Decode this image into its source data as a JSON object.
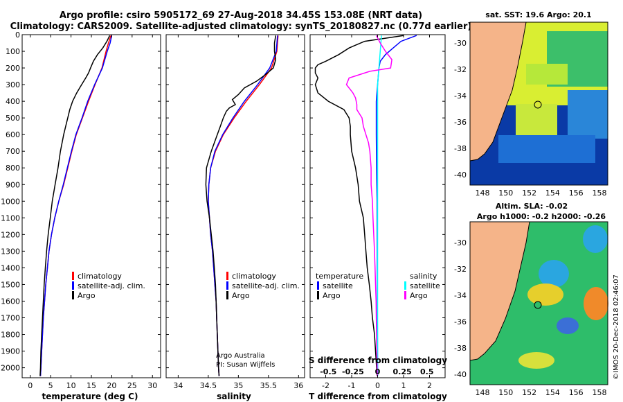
{
  "header": {
    "line1": "Argo profile: csiro 5905172_69 27-Aug-2018 34.45S 153.08E (NRT data)",
    "line2": "Climatology: CARS2009. Satellite-adjusted climatology: synTS_20180827.nc (0.77d earlier)"
  },
  "depth_axis": {
    "ticks": [
      0,
      100,
      200,
      300,
      400,
      500,
      600,
      700,
      800,
      900,
      1000,
      1100,
      1200,
      1300,
      1400,
      1500,
      1600,
      1700,
      1800,
      1900,
      2000
    ],
    "range": [
      0,
      2060
    ]
  },
  "colors": {
    "climatology": "#ff0000",
    "satellite": "#0000ff",
    "argo": "#000000",
    "sat_s": "#00ffff",
    "argo_s": "#ff00ff",
    "land": "#f5b489"
  },
  "chart_data": [
    {
      "type": "line",
      "name": "temperature-panel",
      "xlabel": "temperature (deg C)",
      "xlim": [
        -2,
        32
      ],
      "xticks": [
        0,
        5,
        10,
        15,
        20,
        25,
        30
      ],
      "legend": [
        "climatology",
        "satellite-adj. clim.",
        "Argo"
      ],
      "series": [
        {
          "name": "climatology",
          "depth": [
            5,
            50,
            100,
            200,
            300,
            400,
            500,
            600,
            700,
            800,
            900,
            1000,
            1100,
            1200,
            1300,
            1400,
            1500,
            1600,
            1700,
            1800,
            1900,
            2000,
            2050
          ],
          "values": [
            19.8,
            19.2,
            18.6,
            17.6,
            15.9,
            14.3,
            12.8,
            11.3,
            10.2,
            9.2,
            8.2,
            7.0,
            6.0,
            5.2,
            4.6,
            4.2,
            3.8,
            3.5,
            3.2,
            3.0,
            2.8,
            2.6,
            2.5
          ]
        },
        {
          "name": "satellite-adj. clim.",
          "depth": [
            5,
            50,
            100,
            200,
            300,
            400,
            500,
            600,
            700,
            800,
            900,
            1000,
            1100,
            1200,
            1300,
            1400,
            1500,
            1600,
            1700,
            1800,
            1900,
            2000,
            2050
          ],
          "values": [
            20.0,
            19.6,
            18.9,
            17.7,
            15.8,
            14.1,
            12.7,
            11.2,
            10.1,
            9.1,
            8.1,
            7.0,
            6.0,
            5.2,
            4.6,
            4.2,
            3.8,
            3.5,
            3.2,
            3.0,
            2.8,
            2.6,
            2.5
          ]
        },
        {
          "name": "Argo",
          "depth": [
            5,
            40,
            80,
            120,
            160,
            200,
            230,
            260,
            300,
            350,
            400,
            450,
            500,
            550,
            600,
            700,
            800,
            900,
            1000,
            1100,
            1200,
            1300,
            1400,
            1500,
            1600,
            1700,
            1800,
            1900,
            2000,
            2050
          ],
          "values": [
            19.5,
            18.8,
            17.8,
            16.5,
            15.5,
            14.8,
            14.3,
            13.6,
            12.6,
            11.4,
            10.4,
            9.7,
            9.2,
            8.7,
            8.2,
            7.4,
            6.8,
            6.1,
            5.4,
            4.9,
            4.4,
            4.0,
            3.7,
            3.4,
            3.2,
            3.0,
            2.8,
            2.6,
            2.5,
            2.4
          ]
        }
      ]
    },
    {
      "type": "line",
      "name": "salinity-panel",
      "xlabel": "salinity",
      "xlim": [
        33.8,
        36.1
      ],
      "xticks": [
        34,
        34.5,
        35,
        35.5,
        36
      ],
      "legend": [
        "climatology",
        "satellite-adj. clim.",
        "Argo"
      ],
      "annotation": [
        "Argo Australia",
        "PI: Susan Wijffels"
      ],
      "series": [
        {
          "name": "climatology",
          "depth": [
            5,
            100,
            200,
            300,
            400,
            500,
            600,
            700,
            800,
            900,
            1000,
            1100,
            1200,
            1300,
            1400,
            1500,
            1600,
            1700,
            1800,
            1900,
            2000,
            2050
          ],
          "values": [
            35.66,
            35.64,
            35.55,
            35.35,
            35.13,
            34.93,
            34.75,
            34.62,
            34.54,
            34.51,
            34.5,
            34.52,
            34.54,
            34.57,
            34.59,
            34.61,
            34.63,
            34.64,
            34.65,
            34.66,
            34.67,
            34.68
          ]
        },
        {
          "name": "satellite-adj. clim.",
          "depth": [
            5,
            100,
            200,
            300,
            400,
            500,
            600,
            700,
            800,
            900,
            1000,
            1100,
            1200,
            1300,
            1400,
            1500,
            1600,
            1700,
            1800,
            1900,
            2000,
            2050
          ],
          "values": [
            35.65,
            35.63,
            35.52,
            35.32,
            35.1,
            34.91,
            34.74,
            34.61,
            34.54,
            34.51,
            34.5,
            34.52,
            34.54,
            34.57,
            34.59,
            34.61,
            34.63,
            34.64,
            34.65,
            34.66,
            34.67,
            34.68
          ]
        },
        {
          "name": "Argo",
          "depth": [
            5,
            50,
            100,
            150,
            200,
            240,
            280,
            320,
            360,
            390,
            420,
            440,
            460,
            500,
            550,
            600,
            700,
            800,
            900,
            1000,
            1100,
            1200,
            1300,
            1400,
            1500,
            1600,
            1700,
            1800,
            1900,
            2000,
            2050
          ],
          "values": [
            35.62,
            35.6,
            35.6,
            35.62,
            35.58,
            35.45,
            35.3,
            35.1,
            35.0,
            34.9,
            34.95,
            34.85,
            34.8,
            34.75,
            34.7,
            34.65,
            34.55,
            34.47,
            34.46,
            34.48,
            34.52,
            34.55,
            34.58,
            34.6,
            34.62,
            34.63,
            34.64,
            34.65,
            34.66,
            34.67,
            34.68
          ]
        }
      ]
    },
    {
      "type": "line",
      "name": "difference-panel",
      "xlabel": "T difference from climatology",
      "xlabel_top": "S difference from climatology",
      "xlim": [
        -2.6,
        2.6
      ],
      "xticks": [
        -2,
        -1,
        0,
        1,
        2
      ],
      "s_xticks_labels": [
        "-0.5",
        "-0.25",
        "0",
        "0.25",
        "0.5"
      ],
      "s_xticks_values": [
        -1.9,
        -0.95,
        0,
        0.95,
        1.9
      ],
      "legend_t": {
        "title": "temperature",
        "items": [
          "satellite",
          "Argo"
        ]
      },
      "legend_s": {
        "title": "salinity",
        "items": [
          "satellite",
          "Argo"
        ]
      },
      "series": [
        {
          "name": "temperature-satellite",
          "depth": [
            5,
            40,
            80,
            120,
            160,
            200,
            300,
            400,
            600,
            800,
            1000,
            1500,
            2050
          ],
          "values": [
            1.5,
            0.9,
            0.6,
            0.3,
            0.1,
            0.05,
            0.0,
            -0.05,
            -0.05,
            -0.04,
            -0.02,
            -0.01,
            0.0
          ]
        },
        {
          "name": "temperature-Argo",
          "depth": [
            5,
            40,
            80,
            120,
            160,
            180,
            200,
            230,
            260,
            300,
            350,
            400,
            450,
            500,
            550,
            600,
            700,
            800,
            900,
            1000,
            1100,
            1200,
            1300,
            1400,
            1500,
            1600,
            1700,
            1800,
            1900,
            2000,
            2050
          ],
          "values": [
            1.0,
            -0.5,
            -1.1,
            -1.5,
            -2.0,
            -2.3,
            -2.4,
            -2.4,
            -2.3,
            -2.4,
            -2.3,
            -1.9,
            -1.3,
            -1.1,
            -1.05,
            -1.05,
            -1.0,
            -0.85,
            -0.75,
            -0.7,
            -0.55,
            -0.5,
            -0.45,
            -0.4,
            -0.32,
            -0.25,
            -0.2,
            -0.12,
            -0.08,
            -0.04,
            -0.02
          ]
        },
        {
          "name": "salinity-satellite",
          "depth": [
            5,
            100,
            200,
            300,
            400,
            600,
            800,
            1000,
            1500,
            2050
          ],
          "values": [
            0.15,
            0.1,
            0.05,
            0.0,
            0.0,
            0.0,
            0.0,
            0.0,
            0.0,
            0.0
          ]
        },
        {
          "name": "salinity-Argo",
          "depth": [
            5,
            50,
            100,
            150,
            200,
            220,
            260,
            300,
            350,
            380,
            420,
            450,
            500,
            550,
            600,
            650,
            700,
            800,
            900,
            1000,
            1100,
            1200,
            1300,
            1400,
            1500,
            1600,
            1700,
            1800,
            1900,
            2000,
            2050
          ],
          "values": [
            -0.05,
            0.1,
            0.3,
            0.55,
            0.5,
            -0.3,
            -1.1,
            -1.2,
            -0.95,
            -0.85,
            -0.8,
            -0.8,
            -0.6,
            -0.55,
            -0.45,
            -0.35,
            -0.3,
            -0.25,
            -0.25,
            -0.2,
            -0.18,
            -0.15,
            -0.12,
            -0.1,
            -0.08,
            -0.06,
            -0.05,
            -0.04,
            -0.03,
            -0.02,
            -0.01
          ]
        }
      ]
    }
  ],
  "maps": {
    "sst": {
      "title": "sat. SST: 19.6 Argo: 20.1",
      "lat_ticks": [
        "-30",
        "-32",
        "-34",
        "-36",
        "-38",
        "-40"
      ],
      "lon_ticks": [
        "148",
        "150",
        "152",
        "154",
        "156",
        "158"
      ]
    },
    "sla": {
      "title1": "Altim. SLA: -0.02",
      "title2": "Argo h1000: -0.2 h2000: -0.26",
      "lat_ticks": [
        "-30",
        "-32",
        "-34",
        "-36",
        "-38",
        "-40"
      ]
    }
  },
  "watermark": "©IMOS 20-Dec-2018 02:46:07"
}
